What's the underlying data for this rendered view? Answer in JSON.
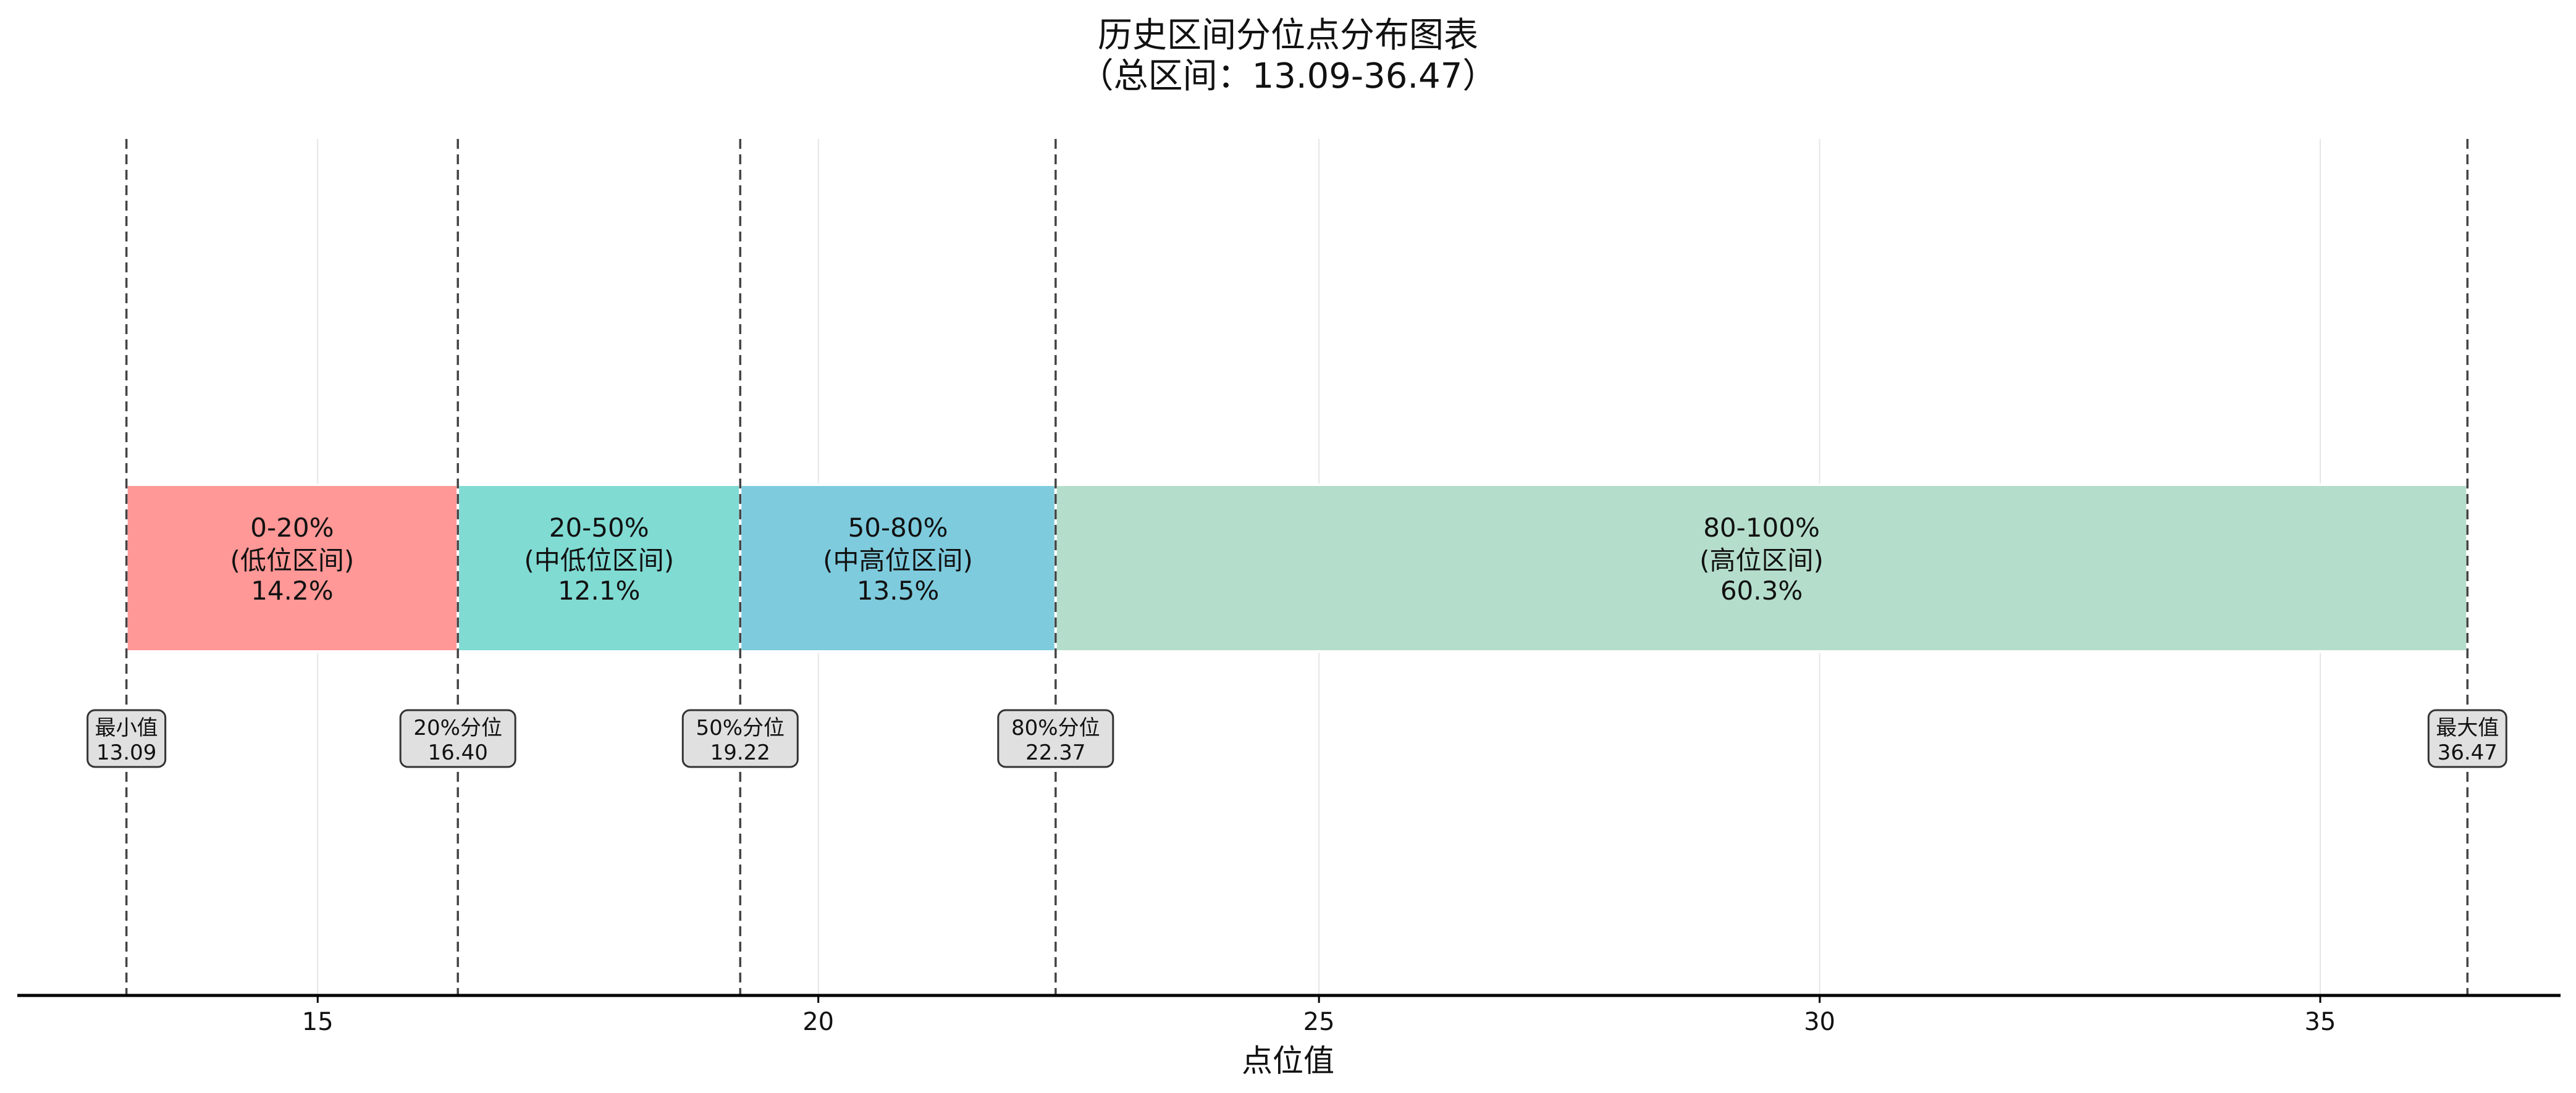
{
  "chart_data": {
    "type": "bar",
    "title": "历史区间分位点分布图表",
    "subtitle": "（总区间：13.09-36.47）",
    "xlabel": "点位值",
    "ylabel": "",
    "xlim": [
      12.0,
      37.4
    ],
    "xticks": [
      15,
      20,
      25,
      30,
      35
    ],
    "grid": "vertical",
    "segments": [
      {
        "range_label": "0-20%",
        "zone_label": "(低位区间)",
        "pct_label": "14.2%",
        "start": 13.09,
        "end": 16.4,
        "color": "#ff9896"
      },
      {
        "range_label": "20-50%",
        "zone_label": "(中低位区间)",
        "pct_label": "12.1%",
        "start": 16.4,
        "end": 19.22,
        "color": "#80dbd3"
      },
      {
        "range_label": "50-80%",
        "zone_label": "(中高位区间)",
        "pct_label": "13.5%",
        "start": 19.22,
        "end": 22.37,
        "color": "#7ecbde"
      },
      {
        "range_label": "80-100%",
        "zone_label": "(高位区间)",
        "pct_label": "60.3%",
        "start": 22.37,
        "end": 36.47,
        "color": "#b4decb"
      }
    ],
    "markers": [
      {
        "name": "最小值",
        "value_label": "13.09",
        "value": 13.09
      },
      {
        "name": "20%分位",
        "value_label": "16.40",
        "value": 16.4
      },
      {
        "name": "50%分位",
        "value_label": "19.22",
        "value": 19.22
      },
      {
        "name": "80%分位",
        "value_label": "22.37",
        "value": 22.37
      },
      {
        "name": "最大值",
        "value_label": "36.47",
        "value": 36.47
      }
    ]
  }
}
